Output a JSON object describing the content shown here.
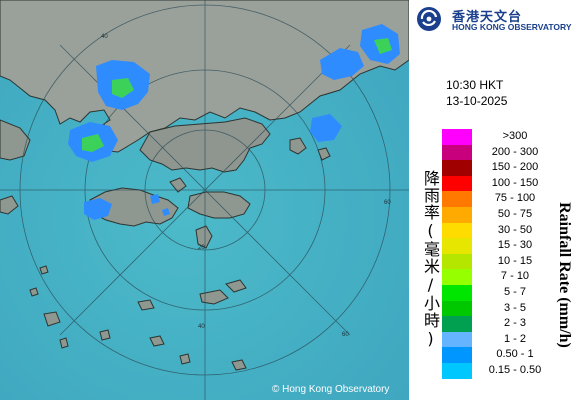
{
  "organization": {
    "name_cn": "香港天文台",
    "name_en": "HONG KONG OBSERVATORY",
    "logo_icon": "hko-logo-icon"
  },
  "timestamp": {
    "time": "10:30 HKT",
    "date": "13-10-2025"
  },
  "legend": {
    "title_cn": "降雨率(毫米/小時)",
    "title_en": "Rainfall Rate (mm/h)",
    "items": [
      {
        "label": ">300",
        "color": "#ff00ff"
      },
      {
        "label": "200 - 300",
        "color": "#c8007d"
      },
      {
        "label": "150 - 200",
        "color": "#a00000"
      },
      {
        "label": "100 - 150",
        "color": "#ff0000"
      },
      {
        "label": "75 - 100",
        "color": "#ff7800"
      },
      {
        "label": "50 - 75",
        "color": "#ffaa00"
      },
      {
        "label": "30 - 50",
        "color": "#ffdc00"
      },
      {
        "label": "15 - 30",
        "color": "#e6e600"
      },
      {
        "label": "10 - 15",
        "color": "#b4e600"
      },
      {
        "label": "7 - 10",
        "color": "#96ff00"
      },
      {
        "label": "5 - 7",
        "color": "#00e600"
      },
      {
        "label": "3 - 5",
        "color": "#00c800"
      },
      {
        "label": "2 - 3",
        "color": "#00a050"
      },
      {
        "label": "1 - 2",
        "color": "#64b4ff"
      },
      {
        "label": "0.50 - 1",
        "color": "#0096ff"
      },
      {
        "label": "0.15 - 0.50",
        "color": "#00c8ff"
      }
    ]
  },
  "map": {
    "range_ring_labels": [
      "20",
      "40",
      "60",
      "40",
      "60"
    ],
    "copyright": "© Hong Kong Observatory",
    "colors": {
      "sea": "#49b4c8",
      "land": "#8e9890",
      "rain_light": "#2f8cff",
      "rain_moderate": "#3cd25a"
    }
  }
}
